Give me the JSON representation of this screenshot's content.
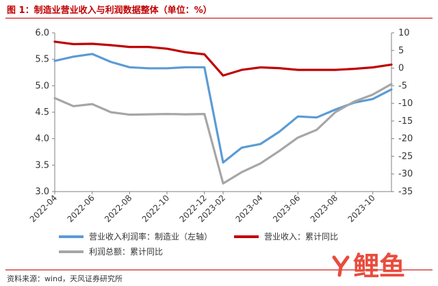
{
  "figure": {
    "title": "图 1：制造业营业收入与利润数据整体（单位：%）",
    "source": "资料来源：wind，天风证券研究所",
    "watermark_text": "鲤鱼",
    "watermark_icon": "fish-logo-icon"
  },
  "chart_data": {
    "type": "line",
    "x": [
      "2022-04",
      "2022-05",
      "2022-06",
      "2022-07",
      "2022-08",
      "2022-09",
      "2022-10",
      "2022-11",
      "2022-12",
      "2023-02",
      "2023-03",
      "2023-04",
      "2023-05",
      "2023-06",
      "2023-07",
      "2023-08",
      "2023-09",
      "2023-10",
      "2023-11"
    ],
    "x_tick_labels": [
      "2022-04",
      "2022-06",
      "2022-08",
      "2022-10",
      "2022-12",
      "2023-02",
      "2023-04",
      "2023-06",
      "2023-08",
      "2023-10"
    ],
    "y_left": {
      "range": [
        3.0,
        6.0
      ],
      "ticks": [
        "3.0",
        "3.5",
        "4.0",
        "4.5",
        "5.0",
        "5.5",
        "6.0"
      ]
    },
    "y_right": {
      "range": [
        -35,
        10
      ],
      "ticks": [
        "-35",
        "-30",
        "-25",
        "-20",
        "-15",
        "-10",
        "-5",
        "0",
        "5",
        "10"
      ]
    },
    "grid": false,
    "legend_position": "bottom",
    "series": [
      {
        "name": "营业收入利润率：制造业（左轴）",
        "axis": "left",
        "color": "#5b9bd5",
        "values": [
          5.47,
          5.55,
          5.6,
          5.45,
          5.35,
          5.33,
          5.33,
          5.35,
          5.35,
          3.55,
          3.83,
          3.9,
          4.13,
          4.42,
          4.4,
          4.55,
          4.68,
          4.75,
          4.93
        ]
      },
      {
        "name": "营业收入：累计同比",
        "axis": "right",
        "color": "#c00000",
        "values": [
          7.5,
          6.8,
          6.9,
          6.5,
          6.0,
          6.0,
          5.5,
          4.5,
          3.9,
          -2.1,
          -0.5,
          0.2,
          0.0,
          -0.5,
          -0.5,
          -0.5,
          -0.2,
          0.2,
          1.0
        ]
      },
      {
        "name": "利润总额：累计同比",
        "axis": "right",
        "color": "#a6a6a6",
        "values": [
          -8.5,
          -10.8,
          -10.2,
          -12.5,
          -13.2,
          -13.1,
          -13.0,
          -13.1,
          -13.0,
          -32.7,
          -29.5,
          -27.0,
          -23.5,
          -19.7,
          -17.5,
          -12.5,
          -9.5,
          -7.5,
          -4.5
        ]
      }
    ]
  }
}
